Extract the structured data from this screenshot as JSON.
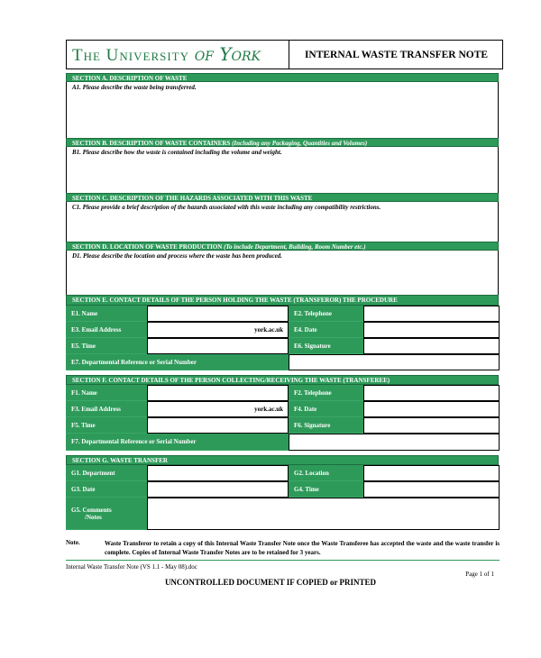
{
  "header": {
    "logo": "The University of York",
    "logo_main": "The University",
    "logo_script": "of York",
    "title": "INTERNAL WASTE TRANSFER NOTE"
  },
  "colors": {
    "accent": "#2e9a5a"
  },
  "sections": {
    "a": {
      "title": "SECTION A.  DESCRIPTION OF WASTE",
      "prompt": "A1.  Please describe the waste being transferred."
    },
    "b": {
      "title": "SECTION B.  DESCRIPTION OF WASTE CONTAINERS",
      "subtitle": "(Including any Packaging, Quantities and Volumes)",
      "prompt": "B1.  Please describe how the waste is contained including the volume and weight."
    },
    "c": {
      "title": "SECTION C.  DESCRIPTION OF THE HAZARDS ASSOCIATED WITH THIS WASTE",
      "prompt": "C1.  Please provide a brief description of the hazards associated with this waste including any compatibility restrictions."
    },
    "d": {
      "title": "SECTION D.  LOCATION OF WASTE PRODUCTION",
      "subtitle": "(To include Department, Building, Room Number etc.)",
      "prompt": "D1.  Please describe the location and process where the waste has been produced."
    },
    "e": {
      "title": "SECTION E.  CONTACT DETAILS OF THE PERSON HOLDING THE WASTE (TRANSFEROR) THE PROCEDURE",
      "name": "E1.  Name",
      "telephone": "E2.  Telephone",
      "email": "E3.  Email Address",
      "email_suffix": "york.ac.uk",
      "date": "E4.  Date",
      "time": "E5.  Time",
      "signature": "E6.  Signature",
      "ref": "E7.  Departmental Reference or Serial Number"
    },
    "f": {
      "title": "SECTION F.  CONTACT DETAILS OF THE PERSON COLLECTING/RECEIVING THE WASTE (TRANSFEREE)",
      "name": "F1.  Name",
      "telephone": "F2.  Telephone",
      "email": "F3.  Email Address",
      "email_suffix": "york.ac.uk",
      "date": "F4.  Date",
      "time": "F5.  Time",
      "signature": "F6.  Signature",
      "ref": "F7.  Departmental Reference or Serial Number"
    },
    "g": {
      "title": "SECTION G.   WASTE TRANSFER",
      "department": "G1.  Department",
      "location": "G2.  Location",
      "date": "G3.  Date",
      "time": "G4.  Time",
      "comments": "G5.  Comments",
      "comments2": "/Notes"
    }
  },
  "note": {
    "label": "Note.",
    "text": "Waste Transferor to retain a copy of this Internal Waste Transfer Note once the Waste Transferee has accepted the waste and the waste transfer is complete.  Copies of Internal Waste Transfer Notes are to be retained for 3 years."
  },
  "footer": {
    "filename": "Internal Waste Transfer Note (VS 1.1 - May 08).doc",
    "page": "Page 1 of 1",
    "uncontrolled": "UNCONTROLLED DOCUMENT IF COPIED or PRINTED"
  }
}
